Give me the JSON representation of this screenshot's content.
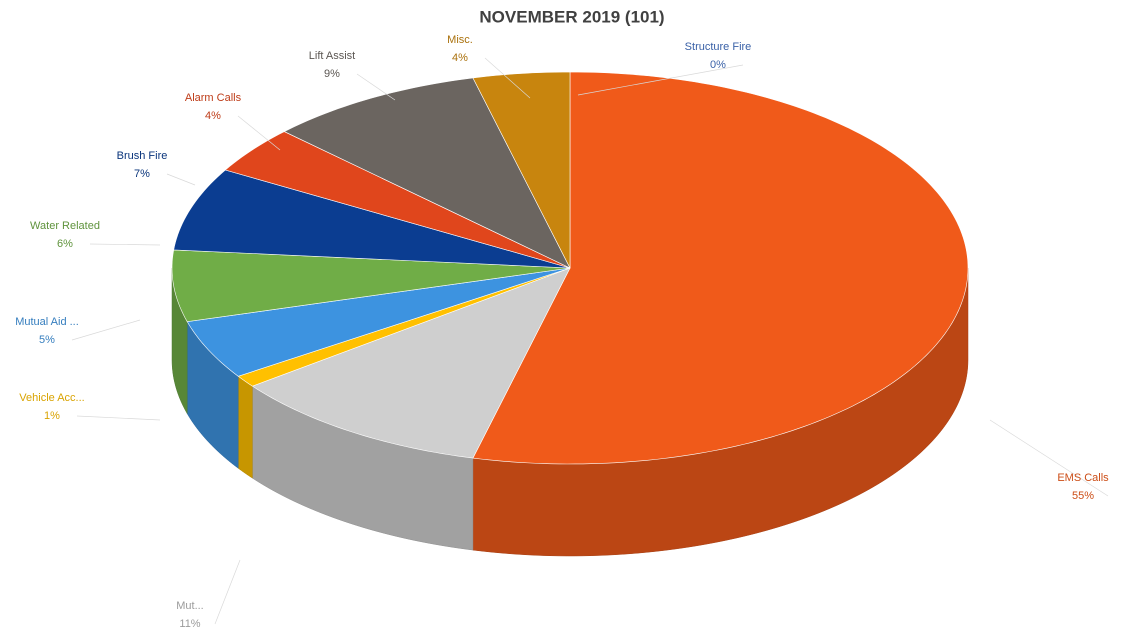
{
  "chart_data": {
    "type": "pie",
    "title": "NOVEMBER 2019 (101)",
    "categories": [
      "Structure Fire",
      "EMS Calls",
      "Mut...",
      "Vehicle Acc...",
      "Mutual Aid ...",
      "Water Related",
      "Brush Fire",
      "Alarm Calls",
      "Lift Assist",
      "Misc."
    ],
    "values": [
      0,
      55,
      11,
      1,
      5,
      6,
      7,
      4,
      9,
      4
    ],
    "value_labels": [
      "0%",
      "55%",
      "11%",
      "1%",
      "5%",
      "6%",
      "7%",
      "4%",
      "9%",
      "4%"
    ],
    "colors": [
      "#4472c4",
      "#f05a1a",
      "#cfcfcf",
      "#ffc000",
      "#3d93e0",
      "#70ad47",
      "#0b3d91",
      "#e0461c",
      "#6b6560",
      "#c8850e"
    ]
  }
}
